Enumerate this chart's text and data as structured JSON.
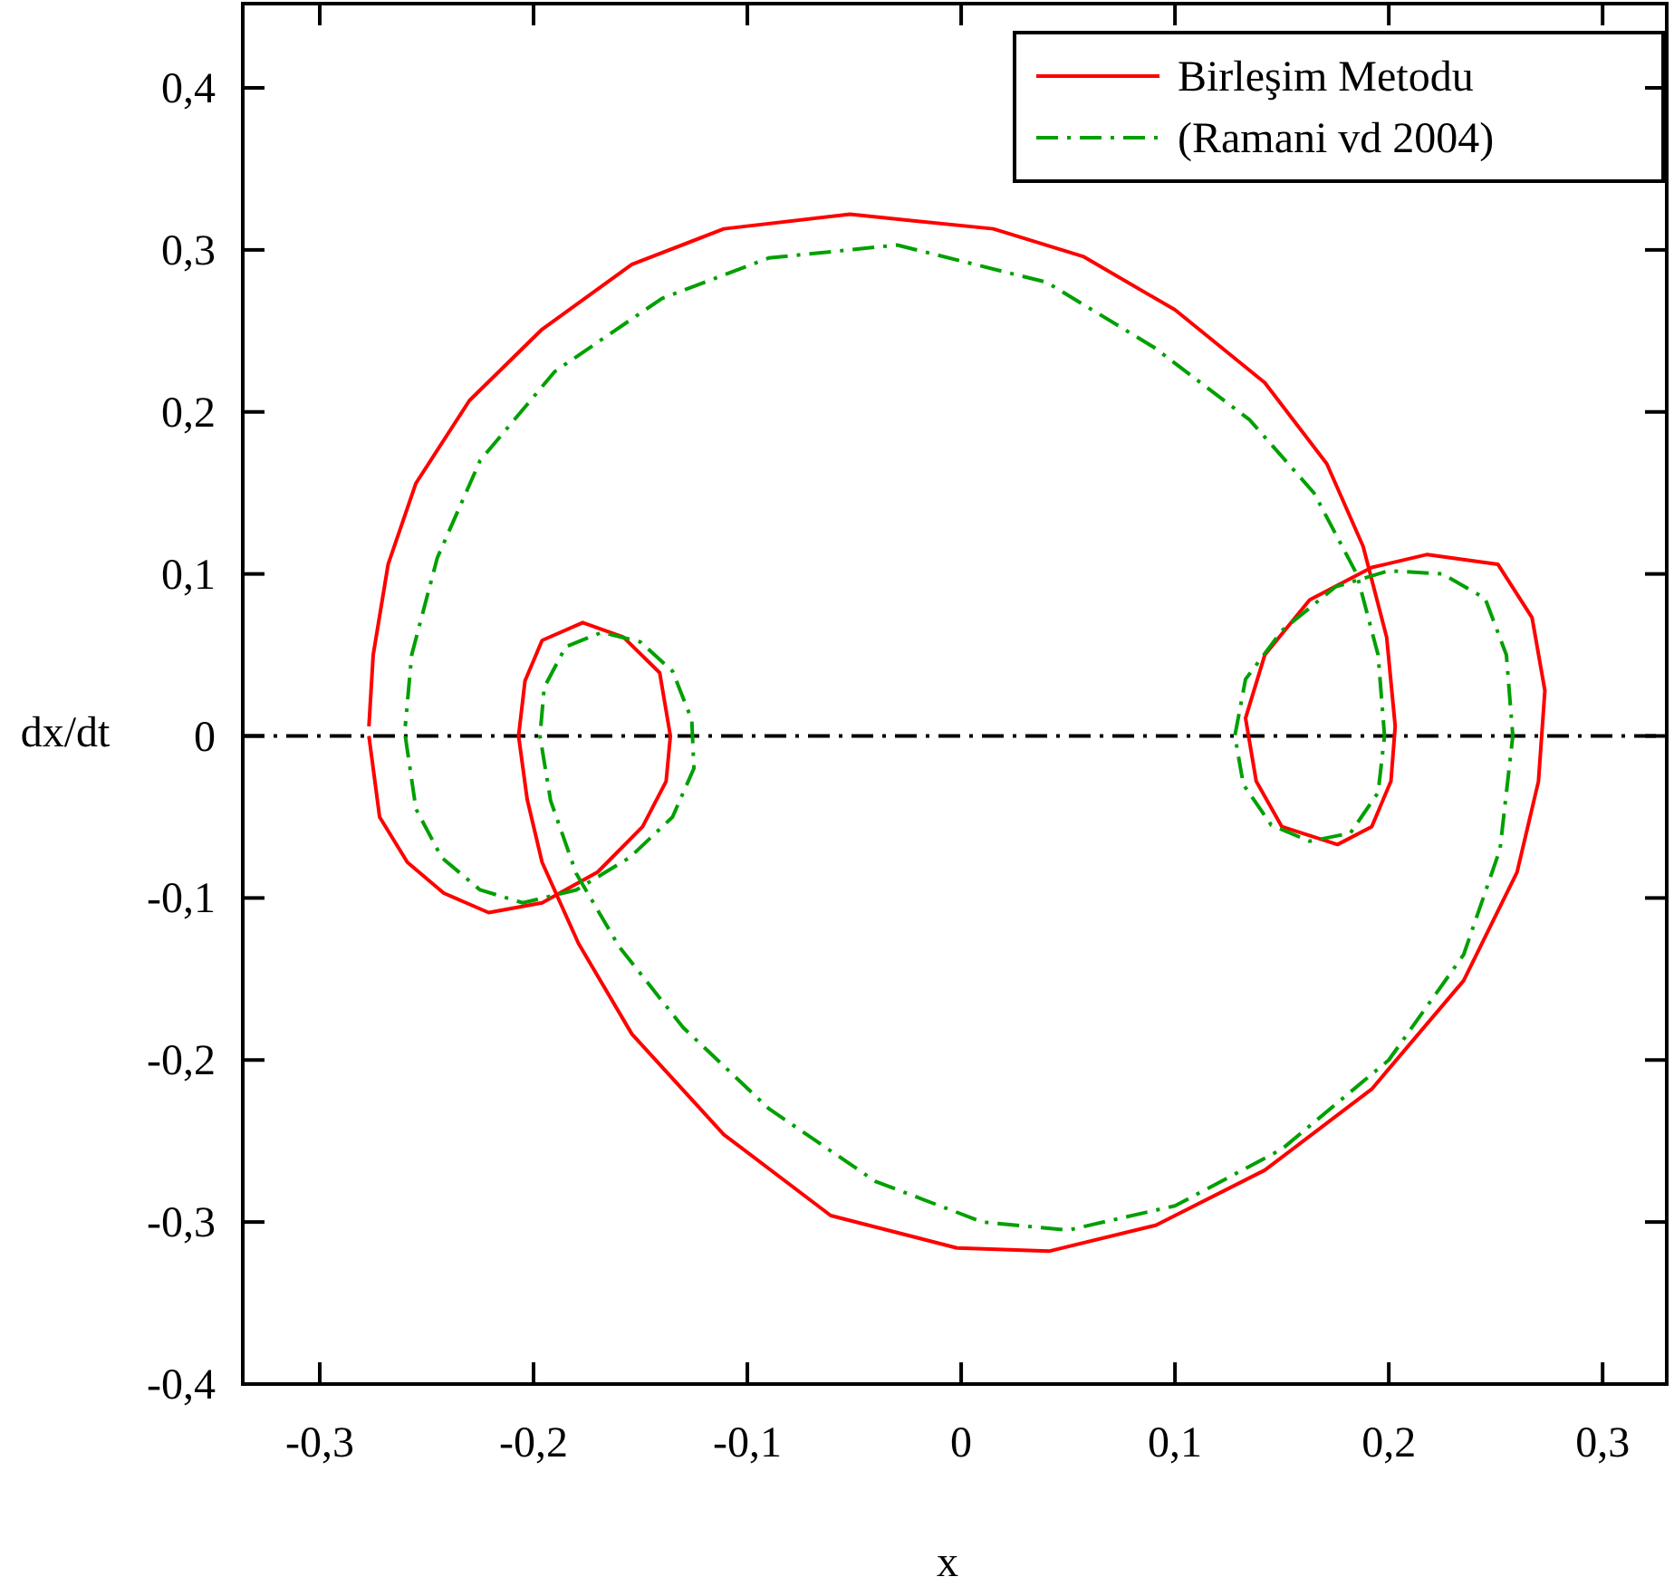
{
  "chart_data": {
    "type": "line",
    "xlabel": "x",
    "ylabel": "dx/dt",
    "xlim": [
      -0.336,
      0.33
    ],
    "ylim": [
      -0.4,
      0.452
    ],
    "xticks": [
      {
        "value": -0.3,
        "label": "-0,3"
      },
      {
        "value": -0.2,
        "label": "-0,2"
      },
      {
        "value": -0.1,
        "label": "-0,1"
      },
      0,
      {
        "value": 0.1,
        "label": "0,1"
      },
      {
        "value": 0.2,
        "label": "0,2"
      },
      {
        "value": 0.3,
        "label": "0,3"
      }
    ],
    "yticks": [
      {
        "value": -0.4,
        "label": "-0,4"
      },
      {
        "value": -0.3,
        "label": "-0,3"
      },
      {
        "value": -0.2,
        "label": "-0,2"
      },
      {
        "value": -0.1,
        "label": "-0,1"
      },
      0,
      {
        "value": 0.1,
        "label": "0,1"
      },
      {
        "value": 0.2,
        "label": "0,2"
      },
      {
        "value": 0.3,
        "label": "0,3"
      },
      {
        "value": 0.4,
        "label": "0,4"
      }
    ],
    "grid": false,
    "legend": "top right",
    "marker": "none",
    "ref_lines": [
      {
        "axis": "y",
        "value": 0,
        "color": "#000000",
        "line_style": "dashdot"
      }
    ],
    "series": [
      {
        "name": "Birleşim Metodu",
        "color": "#ff0000",
        "line_style": "solid",
        "x": [
          -0.277,
          -0.272,
          -0.259,
          -0.242,
          -0.221,
          -0.196,
          -0.17,
          -0.149,
          -0.138,
          -0.136,
          -0.141,
          -0.158,
          -0.177,
          -0.196,
          -0.204,
          -0.207,
          -0.203,
          -0.196,
          -0.179,
          -0.154,
          -0.111,
          -0.061,
          -0.002,
          0.041,
          0.091,
          0.142,
          0.192,
          0.235,
          0.26,
          0.27,
          0.273,
          0.267,
          0.251,
          0.218,
          0.192,
          0.163,
          0.142,
          0.133,
          0.138,
          0.15,
          0.176,
          0.192,
          0.201,
          0.203,
          0.199,
          0.188,
          0.171,
          0.142,
          0.1,
          0.057,
          0.015,
          -0.052,
          -0.111,
          -0.154,
          -0.196,
          -0.23,
          -0.255,
          -0.268,
          -0.275,
          -0.277
        ],
        "values": [
          0,
          -0.05,
          -0.078,
          -0.097,
          -0.109,
          -0.103,
          -0.084,
          -0.056,
          -0.028,
          0,
          0.039,
          0.061,
          0.07,
          0.059,
          0.034,
          0,
          -0.039,
          -0.078,
          -0.128,
          -0.184,
          -0.246,
          -0.296,
          -0.316,
          -0.318,
          -0.302,
          -0.268,
          -0.218,
          -0.151,
          -0.084,
          -0.028,
          0.028,
          0.073,
          0.106,
          0.112,
          0.104,
          0.084,
          0.05,
          0.011,
          -0.028,
          -0.056,
          -0.067,
          -0.056,
          -0.028,
          0.006,
          0.061,
          0.117,
          0.168,
          0.218,
          0.263,
          0.296,
          0.313,
          0.322,
          0.313,
          0.291,
          0.251,
          0.207,
          0.156,
          0.106,
          0.05,
          0.006
        ]
      },
      {
        "name": "(Ramani vd 2004)",
        "color": "#00a000",
        "line_style": "dashdot",
        "x": [
          -0.26,
          -0.255,
          -0.243,
          -0.225,
          -0.205,
          -0.18,
          -0.155,
          -0.135,
          -0.125,
          -0.126,
          -0.135,
          -0.15,
          -0.168,
          -0.185,
          -0.195,
          -0.197,
          -0.192,
          -0.18,
          -0.16,
          -0.13,
          -0.09,
          -0.04,
          0.01,
          0.05,
          0.1,
          0.15,
          0.2,
          0.235,
          0.252,
          0.258,
          0.255,
          0.245,
          0.225,
          0.2,
          0.175,
          0.15,
          0.133,
          0.128,
          0.132,
          0.145,
          0.163,
          0.182,
          0.195,
          0.198,
          0.195,
          0.185,
          0.165,
          0.135,
          0.09,
          0.04,
          -0.03,
          -0.09,
          -0.14,
          -0.19,
          -0.225,
          -0.245,
          -0.257,
          -0.26
        ],
        "values": [
          0,
          -0.045,
          -0.075,
          -0.095,
          -0.103,
          -0.095,
          -0.075,
          -0.05,
          -0.02,
          0.01,
          0.04,
          0.058,
          0.064,
          0.055,
          0.03,
          0,
          -0.04,
          -0.085,
          -0.13,
          -0.18,
          -0.23,
          -0.275,
          -0.3,
          -0.305,
          -0.29,
          -0.255,
          -0.2,
          -0.135,
          -0.07,
          0,
          0.05,
          0.085,
          0.1,
          0.102,
          0.092,
          0.065,
          0.035,
          0,
          -0.03,
          -0.055,
          -0.065,
          -0.06,
          -0.035,
          0,
          0.05,
          0.1,
          0.15,
          0.195,
          0.24,
          0.28,
          0.303,
          0.295,
          0.27,
          0.225,
          0.17,
          0.11,
          0.05,
          0.006
        ]
      }
    ]
  }
}
